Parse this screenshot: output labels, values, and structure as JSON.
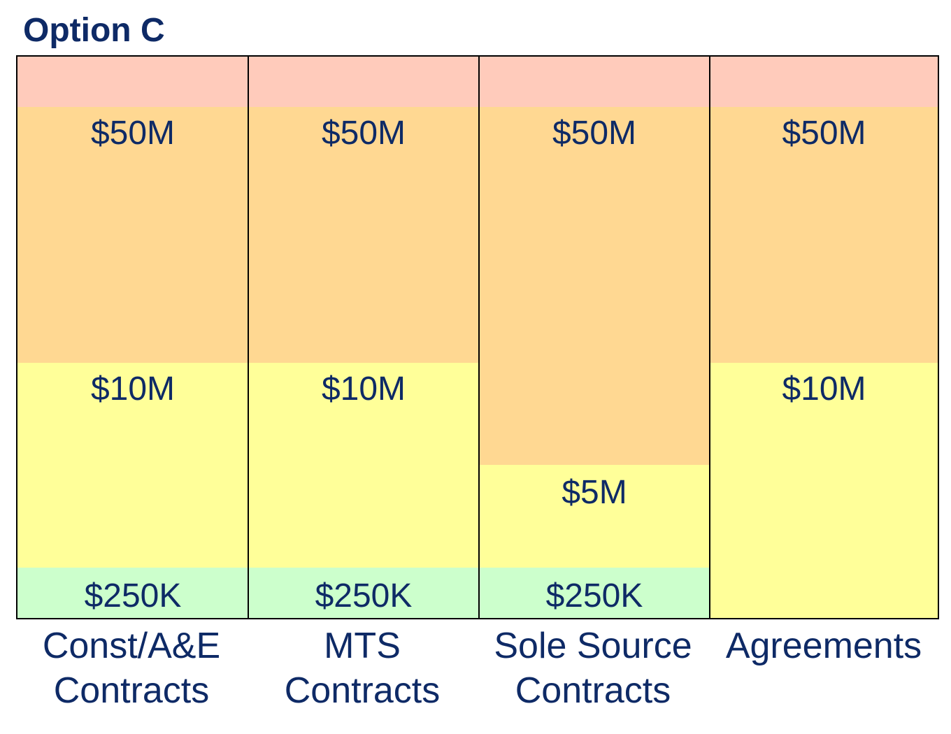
{
  "title": "Option C",
  "columns": [
    {
      "label_line1": "Const/A&E",
      "label_line2": "Contracts",
      "thresholds": {
        "top": "$50M",
        "middle": "$10M",
        "bottom": "$250K"
      }
    },
    {
      "label_line1": "MTS",
      "label_line2": "Contracts",
      "thresholds": {
        "top": "$50M",
        "middle": "$10M",
        "bottom": "$250K"
      }
    },
    {
      "label_line1": "Sole Source",
      "label_line2": "Contracts",
      "thresholds": {
        "top": "$50M",
        "middle": "$5M",
        "bottom": "$250K"
      }
    },
    {
      "label_line1": "Agreements",
      "label_line2": "",
      "thresholds": {
        "top": "$50M",
        "middle": "$10M"
      }
    }
  ],
  "colors": {
    "pink": "#ffcbbb",
    "orange": "#ffd892",
    "yellow": "#ffff99",
    "green": "#ccffcc",
    "text": "#0e2a66"
  }
}
